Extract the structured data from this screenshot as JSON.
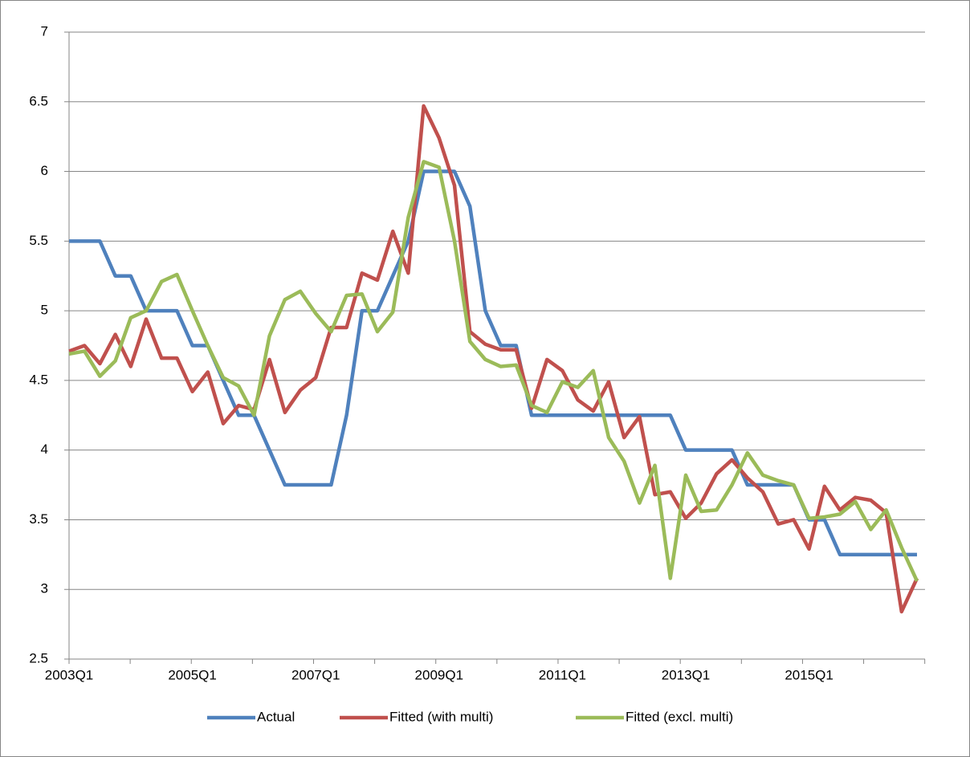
{
  "chart_data": {
    "type": "line",
    "categories": [
      "2003Q1",
      null,
      null,
      null,
      null,
      null,
      null,
      null,
      "2005Q1",
      null,
      null,
      null,
      null,
      null,
      null,
      null,
      "2007Q1",
      null,
      null,
      null,
      null,
      null,
      null,
      null,
      "2009Q1",
      null,
      null,
      null,
      null,
      null,
      null,
      null,
      "2011Q1",
      null,
      null,
      null,
      null,
      null,
      null,
      null,
      "2013Q1",
      null,
      null,
      null,
      null,
      null,
      null,
      null,
      "2015Q1",
      null,
      null,
      null,
      null,
      null,
      null,
      null
    ],
    "series": [
      {
        "name": "Actual",
        "color": "#4f81bd",
        "values": [
          5.5,
          5.5,
          5.5,
          5.25,
          5.25,
          5.0,
          5.0,
          5.0,
          4.75,
          4.75,
          4.5,
          4.25,
          4.25,
          4.0,
          3.75,
          3.75,
          3.75,
          3.75,
          4.25,
          5.0,
          5.0,
          5.25,
          5.5,
          6.0,
          6.0,
          6.0,
          5.75,
          5.0,
          4.75,
          4.75,
          4.25,
          4.25,
          4.25,
          4.25,
          4.25,
          4.25,
          4.25,
          4.25,
          4.25,
          4.25,
          4.0,
          4.0,
          4.0,
          4.0,
          3.75,
          3.75,
          3.75,
          3.75,
          3.5,
          3.5,
          3.25,
          3.25,
          3.25,
          3.25,
          3.25,
          3.25
        ]
      },
      {
        "name": "Fitted (with multi)",
        "color": "#c0504d",
        "values": [
          4.71,
          4.75,
          4.62,
          4.83,
          4.6,
          4.94,
          4.66,
          4.66,
          4.42,
          4.56,
          4.19,
          4.32,
          4.29,
          4.65,
          4.27,
          4.43,
          4.52,
          4.88,
          4.88,
          5.27,
          5.22,
          5.57,
          5.27,
          6.47,
          6.24,
          5.9,
          4.85,
          4.76,
          4.72,
          4.72,
          4.3,
          4.65,
          4.57,
          4.36,
          4.28,
          4.49,
          4.09,
          4.24,
          3.68,
          3.7,
          3.51,
          3.62,
          3.83,
          3.93,
          3.8,
          3.7,
          3.47,
          3.5,
          3.29,
          3.74,
          3.57,
          3.66,
          3.64,
          3.55,
          2.84,
          3.08
        ]
      },
      {
        "name": "Fitted (excl. multi)",
        "color": "#9bbb59",
        "values": [
          4.69,
          4.71,
          4.53,
          4.64,
          4.95,
          5.0,
          5.21,
          5.26,
          5.0,
          4.75,
          4.52,
          4.46,
          4.25,
          4.82,
          5.08,
          5.14,
          4.98,
          4.85,
          5.11,
          5.12,
          4.85,
          4.99,
          5.67,
          6.07,
          6.03,
          5.5,
          4.78,
          4.65,
          4.6,
          4.61,
          4.32,
          4.27,
          4.49,
          4.45,
          4.57,
          4.09,
          3.92,
          3.62,
          3.89,
          3.08,
          3.82,
          3.56,
          3.57,
          3.75,
          3.98,
          3.82,
          3.78,
          3.75,
          3.51,
          3.52,
          3.54,
          3.63,
          3.43,
          3.57,
          3.3,
          3.06
        ]
      }
    ],
    "ylim": [
      2.5,
      7
    ],
    "yticks": [
      2.5,
      3,
      3.5,
      4,
      4.5,
      5,
      5.5,
      6,
      6.5,
      7
    ],
    "grid": true,
    "legend": "bottom"
  }
}
